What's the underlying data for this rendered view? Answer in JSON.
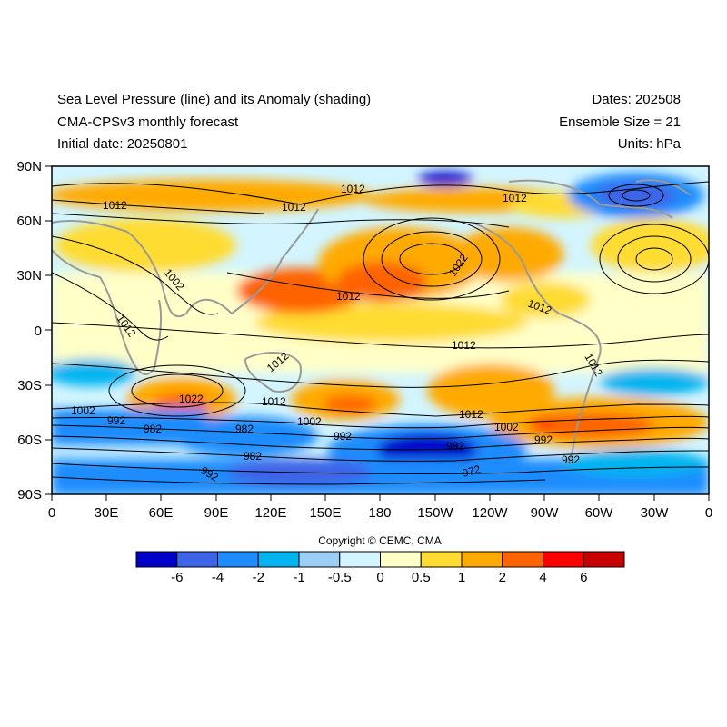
{
  "header": {
    "title_line1": "Sea Level Pressure (line) and its Anomaly (shading)",
    "title_line2": "CMA-CPSv3 monthly forecast",
    "title_line3": "Initial date: 20250801",
    "dates": "Dates: 202508",
    "ensemble": "Ensemble Size = 21",
    "units": "Units: hPa"
  },
  "map": {
    "lat_ticks": [
      "90N",
      "60N",
      "30N",
      "0",
      "30S",
      "60S",
      "90S"
    ],
    "lon_ticks": [
      "0",
      "30E",
      "60E",
      "90E",
      "120E",
      "150E",
      "180",
      "150W",
      "120W",
      "90W",
      "60W",
      "30W",
      "0"
    ],
    "contour_labels": [
      "1012",
      "1012",
      "1012",
      "1012",
      "1002",
      "1022",
      "1012",
      "1012",
      "1012",
      "1012",
      "1012",
      "1022",
      "1012",
      "1002",
      "992",
      "982",
      "1012",
      "1002",
      "992",
      "982",
      "992",
      "982",
      "1012",
      "1002",
      "992",
      "972",
      "982",
      "992",
      "1012"
    ]
  },
  "copyright": "Copyright © CEMC, CMA",
  "colorbar": {
    "colors": [
      "#0000c8",
      "#3c64e6",
      "#1e8cff",
      "#00b4f0",
      "#9ccdf5",
      "#d2f5ff",
      "#ffffc8",
      "#ffdc32",
      "#ffaa00",
      "#ff6400",
      "#ff0000",
      "#c80000"
    ],
    "labels": [
      "-6",
      "-4",
      "-2",
      "-1",
      "-0.5",
      "0",
      "0.5",
      "1",
      "2",
      "4",
      "6"
    ]
  }
}
